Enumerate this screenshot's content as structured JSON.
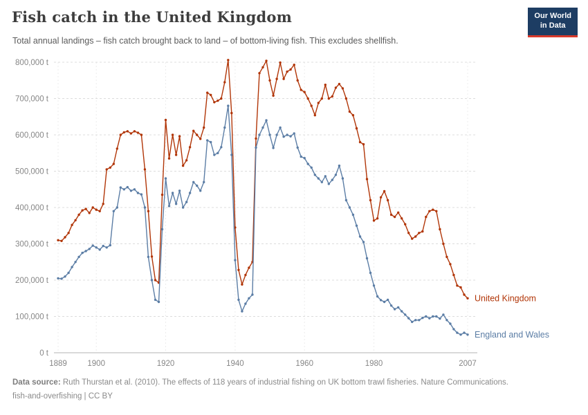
{
  "header": {
    "title": "Fish catch in the United Kingdom",
    "subtitle": "Total annual landings – fish catch brought back to land – of bottom-living fish. This excludes shellfish.",
    "logo_line1": "Our World",
    "logo_line2": "in Data",
    "logo_bg_color": "#1d3d63",
    "logo_accent_color": "#d93a2b"
  },
  "footer": {
    "source_label": "Data source:",
    "source_text": "Ruth Thurstan et al. (2010). The effects of 118 years of industrial fishing on UK bottom trawl fisheries. Nature Communications.",
    "slug": "fish-and-overfishing",
    "separator": " | ",
    "license": "CC BY"
  },
  "chart_data": {
    "type": "line",
    "title": "Fish catch in the United Kingdom",
    "xlabel": "",
    "ylabel": "",
    "x_start_year": 1889,
    "x_end_year": 2007,
    "ylim": [
      0,
      800000
    ],
    "grid": "horizontal-dashed",
    "legend_position": "end-of-line",
    "marker": "circle",
    "yticks": [
      {
        "value": 0,
        "label": "0 t"
      },
      {
        "value": 100000,
        "label": "100,000 t"
      },
      {
        "value": 200000,
        "label": "200,000 t"
      },
      {
        "value": 300000,
        "label": "300,000 t"
      },
      {
        "value": 400000,
        "label": "400,000 t"
      },
      {
        "value": 500000,
        "label": "500,000 t"
      },
      {
        "value": 600000,
        "label": "600,000 t"
      },
      {
        "value": 700000,
        "label": "700,000 t"
      },
      {
        "value": 800000,
        "label": "800,000 t"
      }
    ],
    "xticks": [
      {
        "year": 1889,
        "label": "1889"
      },
      {
        "year": 1900,
        "label": "1900"
      },
      {
        "year": 1920,
        "label": "1920"
      },
      {
        "year": 1940,
        "label": "1940"
      },
      {
        "year": 1960,
        "label": "1960"
      },
      {
        "year": 1980,
        "label": "1980"
      },
      {
        "year": 2007,
        "label": "2007"
      }
    ],
    "series": [
      {
        "name": "United Kingdom",
        "color": "#b13507",
        "values": [
          310000,
          308000,
          318000,
          330000,
          352000,
          365000,
          380000,
          392000,
          396000,
          385000,
          400000,
          394000,
          390000,
          410000,
          505000,
          510000,
          520000,
          562000,
          600000,
          607000,
          610000,
          604000,
          610000,
          606000,
          600000,
          505000,
          390000,
          265000,
          200000,
          193000,
          435000,
          641000,
          535000,
          600000,
          545000,
          596000,
          515000,
          530000,
          566000,
          611000,
          600000,
          589000,
          620000,
          716000,
          710000,
          690000,
          694000,
          700000,
          745000,
          806000,
          660000,
          345000,
          228000,
          188000,
          214000,
          234000,
          250000,
          590000,
          770000,
          786000,
          804000,
          750000,
          708000,
          754000,
          799000,
          754000,
          774000,
          780000,
          793000,
          750000,
          724000,
          718000,
          700000,
          680000,
          654000,
          688000,
          700000,
          738000,
          700000,
          706000,
          730000,
          740000,
          728000,
          700000,
          664000,
          654000,
          618000,
          580000,
          574000,
          478000,
          420000,
          364000,
          370000,
          428000,
          445000,
          420000,
          380000,
          374000,
          386000,
          370000,
          354000,
          330000,
          314000,
          320000,
          330000,
          334000,
          374000,
          390000,
          394000,
          390000,
          340000,
          300000,
          264000,
          244000,
          214000,
          185000,
          180000,
          160000,
          150000
        ]
      },
      {
        "name": "England and Wales",
        "color": "#5b7da5",
        "values": [
          205000,
          204000,
          210000,
          220000,
          236000,
          250000,
          264000,
          275000,
          280000,
          286000,
          295000,
          290000,
          284000,
          294000,
          290000,
          296000,
          390000,
          400000,
          455000,
          450000,
          456000,
          446000,
          450000,
          440000,
          436000,
          400000,
          264000,
          200000,
          146000,
          140000,
          340000,
          480000,
          404000,
          440000,
          410000,
          446000,
          400000,
          415000,
          440000,
          470000,
          460000,
          446000,
          470000,
          585000,
          580000,
          545000,
          550000,
          566000,
          620000,
          680000,
          545000,
          255000,
          146000,
          114000,
          135000,
          150000,
          160000,
          565000,
          600000,
          620000,
          640000,
          600000,
          564000,
          600000,
          620000,
          595000,
          600000,
          596000,
          604000,
          565000,
          540000,
          536000,
          520000,
          510000,
          490000,
          480000,
          470000,
          486000,
          465000,
          476000,
          490000,
          515000,
          480000,
          420000,
          400000,
          380000,
          350000,
          320000,
          305000,
          260000,
          220000,
          185000,
          155000,
          145000,
          140000,
          146000,
          130000,
          120000,
          125000,
          114000,
          105000,
          95000,
          85000,
          90000,
          90000,
          96000,
          100000,
          95000,
          100000,
          100000,
          94000,
          105000,
          90000,
          80000,
          65000,
          55000,
          50000,
          55000,
          50000
        ]
      }
    ]
  }
}
